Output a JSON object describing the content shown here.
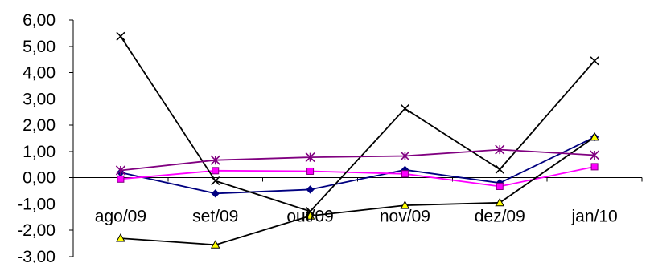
{
  "chart_data": {
    "type": "line",
    "categories": [
      "ago/09",
      "set/09",
      "out/09",
      "nov/09",
      "dez/09",
      "jan/10"
    ],
    "y_tick_labels": [
      "6,00",
      "5,00",
      "4,00",
      "3,00",
      "2,00",
      "1,00",
      "0,00",
      "-1,00",
      "-2,00",
      "-3,00"
    ],
    "ylim": [
      -3,
      6
    ],
    "grid": false,
    "legend": "none",
    "series": [
      {
        "marker": "diamond",
        "color": "#000080",
        "values": [
          0.2,
          -0.6,
          -0.45,
          0.3,
          -0.2,
          1.55
        ]
      },
      {
        "marker": "square",
        "color": "#ff00ff",
        "values": [
          -0.05,
          0.27,
          0.25,
          0.15,
          -0.33,
          0.42
        ]
      },
      {
        "marker": "triangle",
        "color": "#000000",
        "marker_fill": "#ffff00",
        "values": [
          -2.3,
          -2.55,
          -1.45,
          -1.05,
          -0.95,
          1.55
        ]
      },
      {
        "marker": "x",
        "color": "#000000",
        "values": [
          5.38,
          -0.12,
          -1.28,
          2.63,
          0.32,
          4.45
        ]
      },
      {
        "marker": "star",
        "color": "#800080",
        "values": [
          0.28,
          0.67,
          0.78,
          0.83,
          1.07,
          0.86
        ]
      }
    ]
  }
}
